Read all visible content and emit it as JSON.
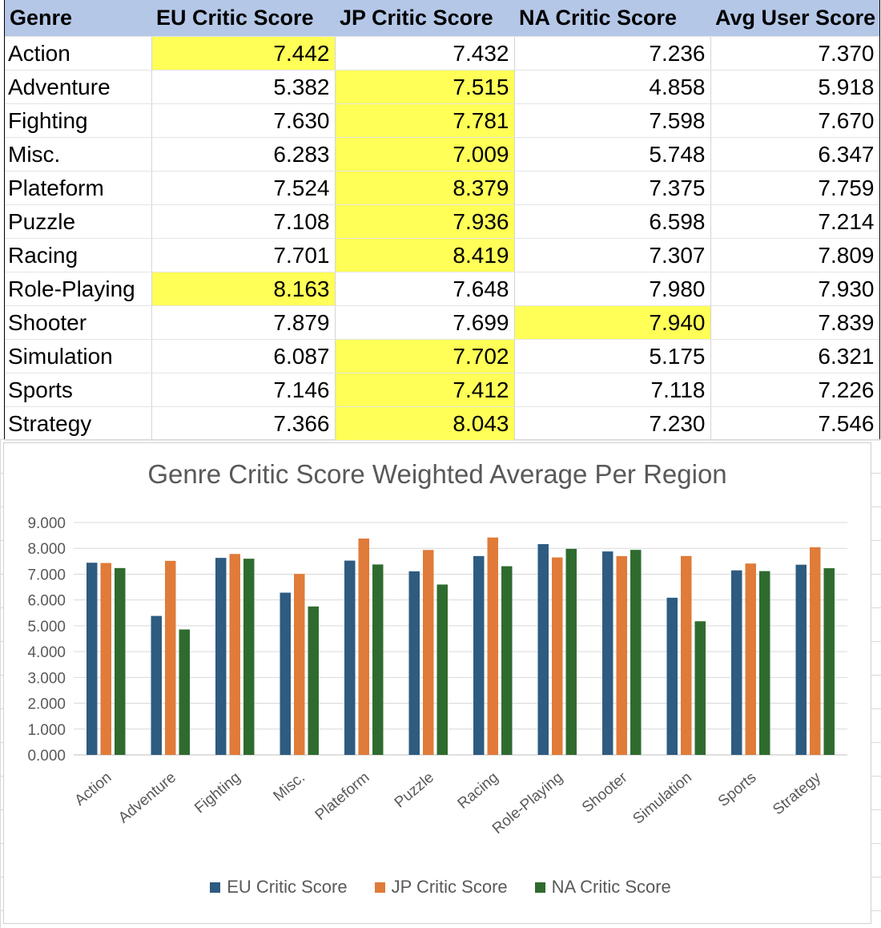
{
  "table": {
    "headers": [
      "Genre",
      "EU Critic Score",
      "JP Critic Score",
      "NA Critic Score",
      "Avg User Score"
    ],
    "rows": [
      {
        "genre": "Action",
        "eu": "7.442",
        "jp": "7.432",
        "na": "7.236",
        "user": "7.370",
        "highlight": "eu"
      },
      {
        "genre": "Adventure",
        "eu": "5.382",
        "jp": "7.515",
        "na": "4.858",
        "user": "5.918",
        "highlight": "jp"
      },
      {
        "genre": "Fighting",
        "eu": "7.630",
        "jp": "7.781",
        "na": "7.598",
        "user": "7.670",
        "highlight": "jp"
      },
      {
        "genre": "Misc.",
        "eu": "6.283",
        "jp": "7.009",
        "na": "5.748",
        "user": "6.347",
        "highlight": "jp"
      },
      {
        "genre": "Plateform",
        "eu": "7.524",
        "jp": "8.379",
        "na": "7.375",
        "user": "7.759",
        "highlight": "jp"
      },
      {
        "genre": "Puzzle",
        "eu": "7.108",
        "jp": "7.936",
        "na": "6.598",
        "user": "7.214",
        "highlight": "jp"
      },
      {
        "genre": "Racing",
        "eu": "7.701",
        "jp": "8.419",
        "na": "7.307",
        "user": "7.809",
        "highlight": "jp"
      },
      {
        "genre": "Role-Playing",
        "eu": "8.163",
        "jp": "7.648",
        "na": "7.980",
        "user": "7.930",
        "highlight": "eu"
      },
      {
        "genre": "Shooter",
        "eu": "7.879",
        "jp": "7.699",
        "na": "7.940",
        "user": "7.839",
        "highlight": "na"
      },
      {
        "genre": "Simulation",
        "eu": "6.087",
        "jp": "7.702",
        "na": "5.175",
        "user": "6.321",
        "highlight": "jp"
      },
      {
        "genre": "Sports",
        "eu": "7.146",
        "jp": "7.412",
        "na": "7.118",
        "user": "7.226",
        "highlight": "jp"
      },
      {
        "genre": "Strategy",
        "eu": "7.366",
        "jp": "8.043",
        "na": "7.230",
        "user": "7.546",
        "highlight": "jp"
      }
    ]
  },
  "colors": {
    "header_bg": "#b4c7e7",
    "highlight": "#ffff57",
    "eu": "#2e5b80",
    "jp": "#e07b39",
    "na": "#2f6b2f"
  },
  "chart_data": {
    "type": "bar",
    "title": "Genre Critic Score Weighted Average Per Region",
    "xlabel": "",
    "ylabel": "",
    "categories": [
      "Action",
      "Adventure",
      "Fighting",
      "Misc.",
      "Plateform",
      "Puzzle",
      "Racing",
      "Role-Playing",
      "Shooter",
      "Simulation",
      "Sports",
      "Strategy"
    ],
    "series": [
      {
        "name": "EU Critic Score",
        "values": [
          7.442,
          5.382,
          7.63,
          6.283,
          7.524,
          7.108,
          7.701,
          8.163,
          7.879,
          6.087,
          7.146,
          7.366
        ]
      },
      {
        "name": "JP Critic Score",
        "values": [
          7.432,
          7.515,
          7.781,
          7.009,
          8.379,
          7.936,
          8.419,
          7.648,
          7.699,
          7.702,
          7.412,
          8.043
        ]
      },
      {
        "name": "NA Critic Score",
        "values": [
          7.236,
          4.858,
          7.598,
          5.748,
          7.375,
          6.598,
          7.307,
          7.98,
          7.94,
          5.175,
          7.118,
          7.23
        ]
      }
    ],
    "ylim": [
      0,
      9
    ],
    "yticks": [
      "0.000",
      "1.000",
      "2.000",
      "3.000",
      "4.000",
      "5.000",
      "6.000",
      "7.000",
      "8.000",
      "9.000"
    ],
    "grid": true,
    "legend": "bottom"
  }
}
